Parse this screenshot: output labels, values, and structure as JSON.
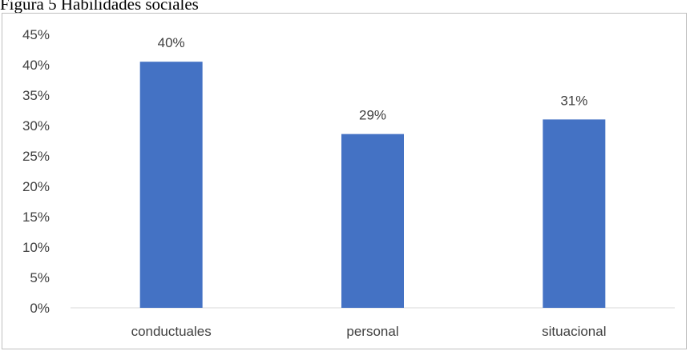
{
  "caption": "Figura 5 Habilidades sociales",
  "chart_data": {
    "type": "bar",
    "title": "",
    "xlabel": "",
    "ylabel": "",
    "categories": [
      "conductuales",
      "personal",
      "situacional"
    ],
    "values": [
      40.5,
      28.6,
      31.0
    ],
    "data_labels": [
      "40%",
      "29%",
      "31%"
    ],
    "ylim": [
      0,
      45
    ],
    "yticks": [
      0,
      5,
      10,
      15,
      20,
      25,
      30,
      35,
      40,
      45
    ],
    "ytick_labels": [
      "0%",
      "5%",
      "10%",
      "15%",
      "20%",
      "25%",
      "30%",
      "35%",
      "40%",
      "45%"
    ],
    "grid": false,
    "legend": "none",
    "bar_color": "#4472c4",
    "axis_color": "#d9d9d9",
    "label_color": "#404040"
  }
}
